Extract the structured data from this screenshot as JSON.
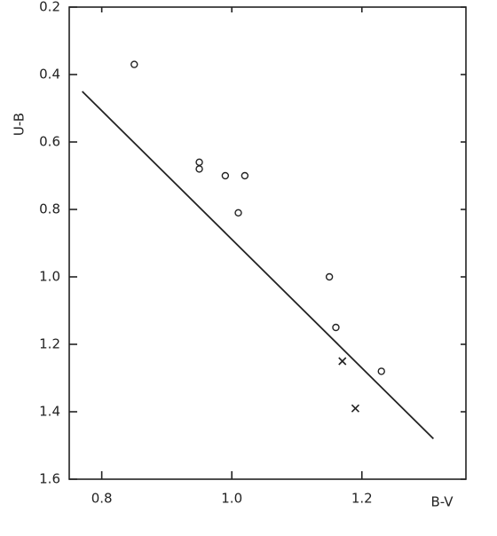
{
  "chart_data": {
    "type": "scatter",
    "xlabel": "B-V",
    "ylabel": "U-B",
    "xlim": [
      0.75,
      1.36
    ],
    "ylim": [
      1.6,
      0.2
    ],
    "xticks": [
      0.8,
      {
        "value": 1,
        "label": "1.0"
      },
      1.2
    ],
    "yticks": [
      0.2,
      0.4,
      0.6,
      0.8,
      {
        "value": 1,
        "label": "1.0"
      },
      1.2,
      1.4,
      1.6
    ],
    "series": [
      {
        "marker": "o",
        "color": "#222",
        "x": [
          0.85,
          0.95,
          0.95,
          0.99,
          1.02,
          1.01,
          1.15,
          1.16,
          1.23
        ],
        "values": [
          0.37,
          0.66,
          0.68,
          0.7,
          0.7,
          0.81,
          1.0,
          1.15,
          1.28
        ]
      },
      {
        "marker": "x",
        "color": "#222",
        "x": [
          1.17,
          1.19
        ],
        "values": [
          1.25,
          1.39
        ]
      }
    ],
    "line": {
      "color": "#222",
      "x": [
        0.77,
        1.31
      ],
      "values": [
        0.45,
        1.48
      ]
    }
  }
}
